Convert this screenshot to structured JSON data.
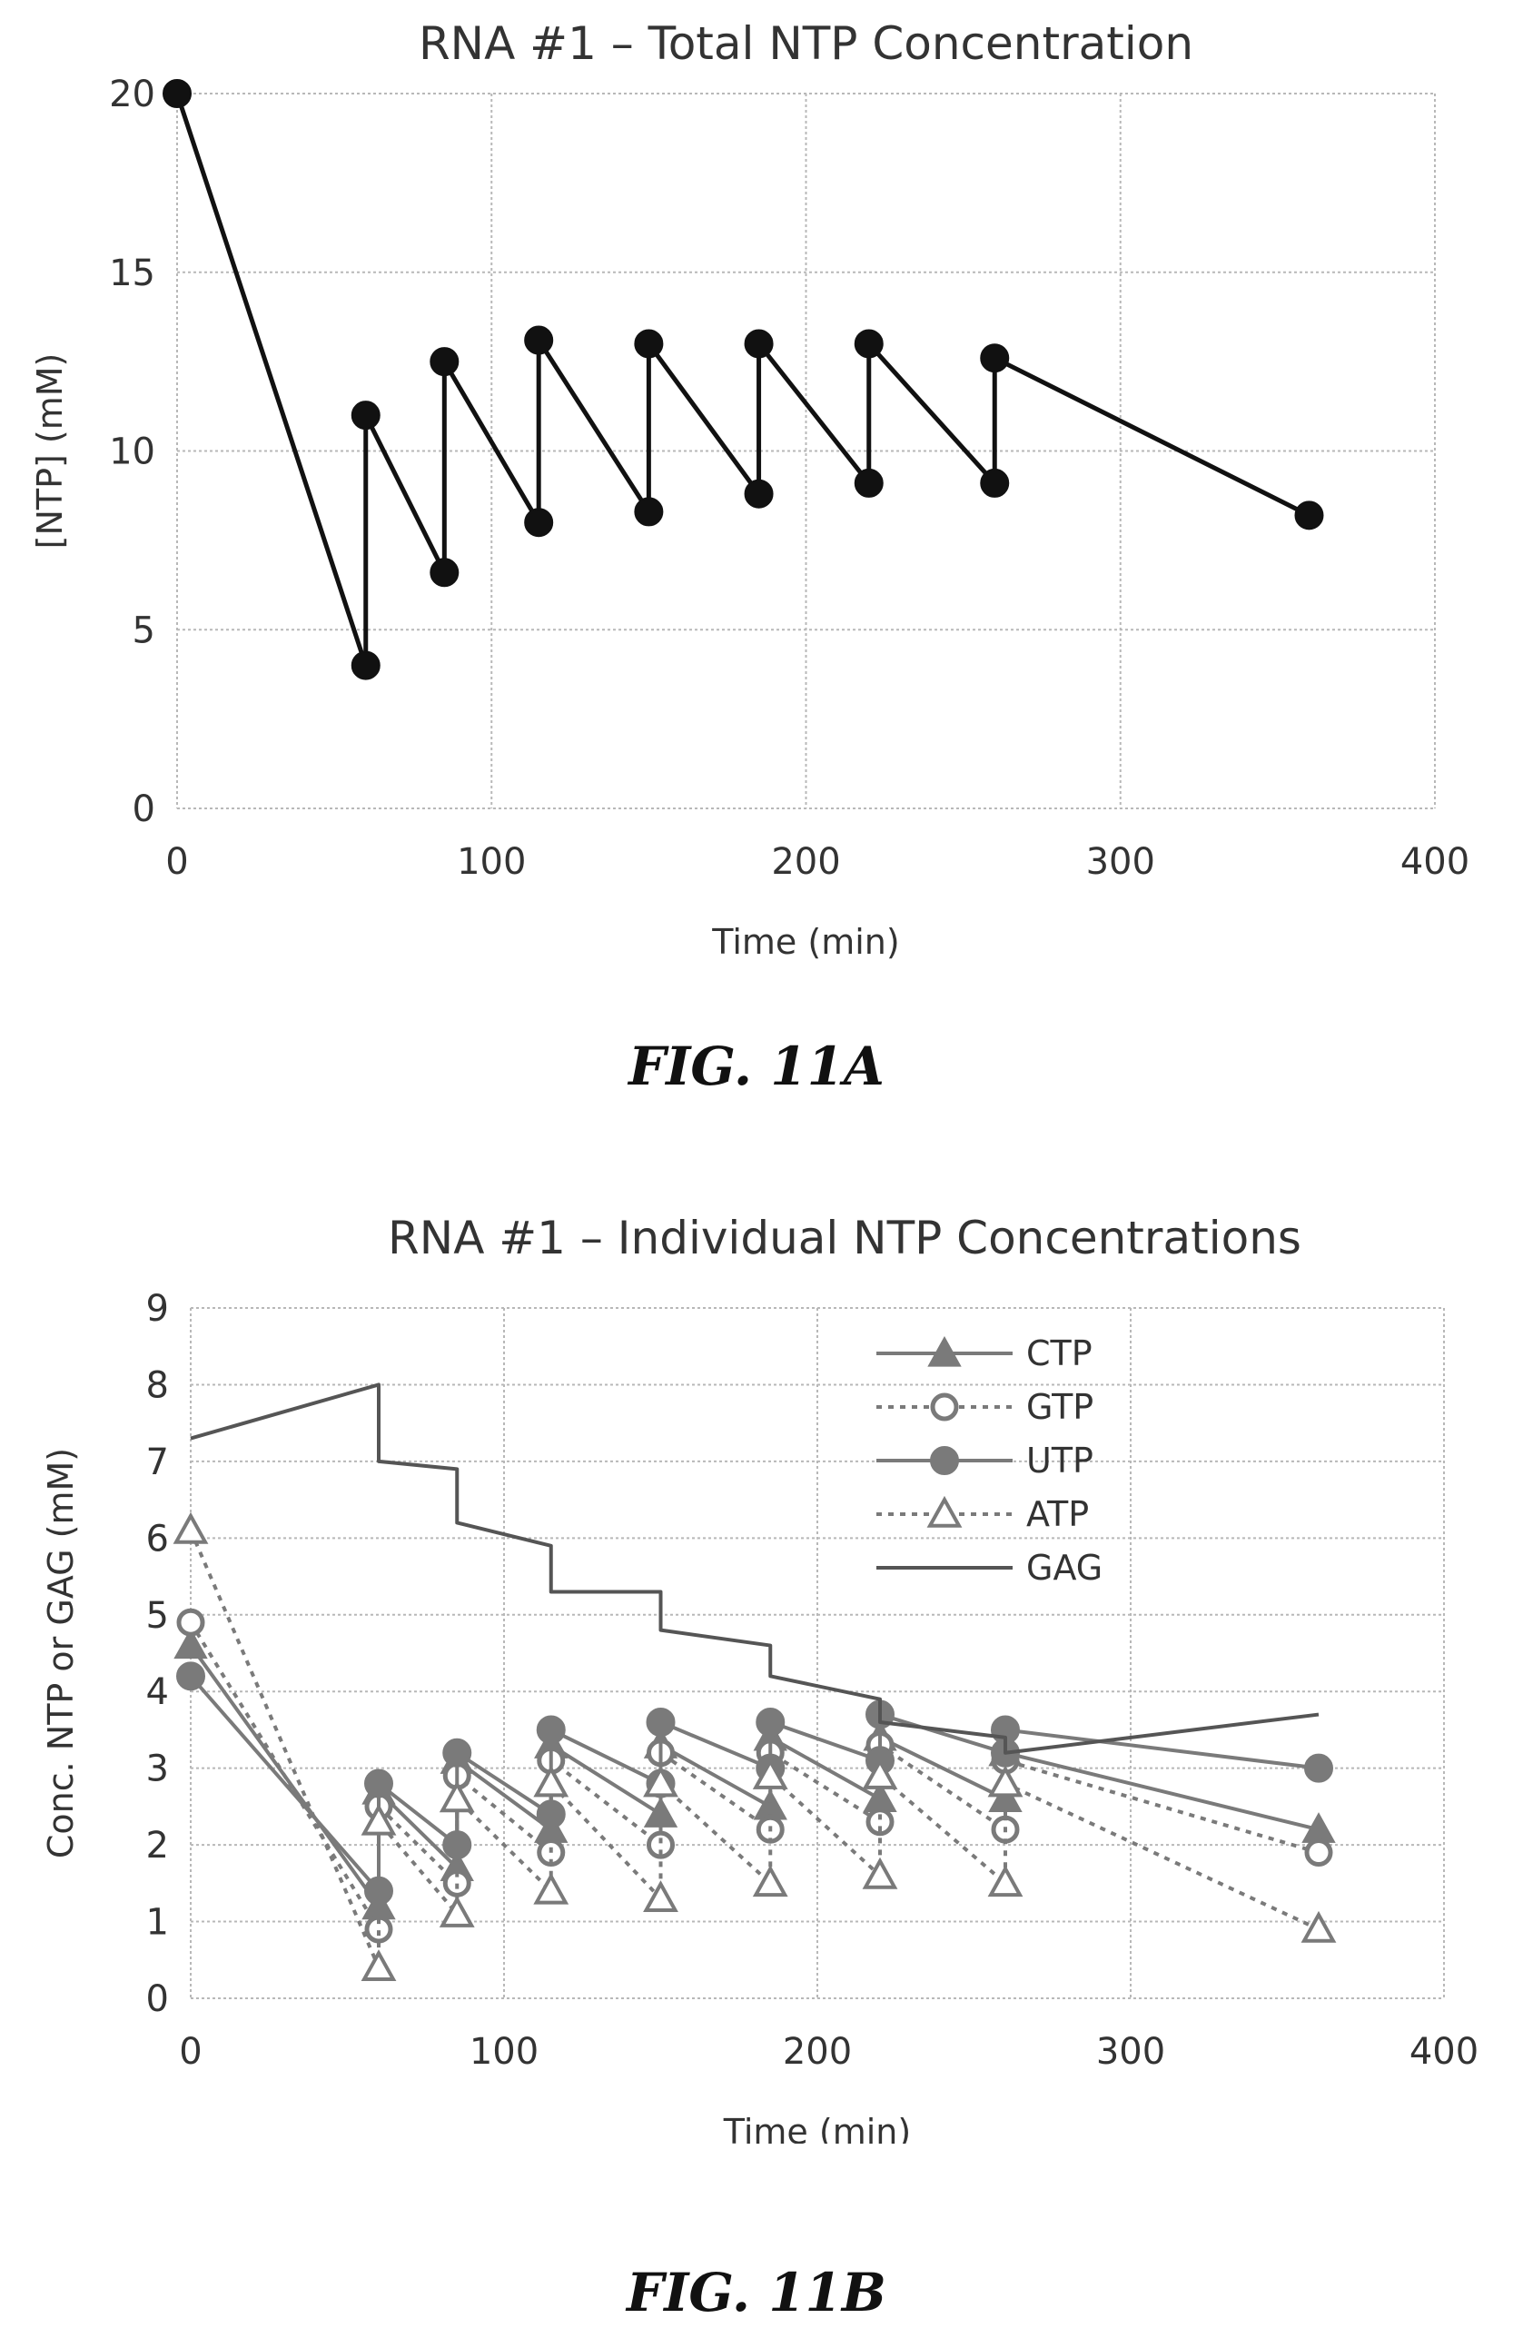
{
  "figures": {
    "a_label": "FIG. 11A",
    "b_label": "FIG. 11B"
  },
  "chart_data": [
    {
      "type": "line",
      "title": "RNA #1 – Total NTP Concentration",
      "xlabel": "Time (min)",
      "ylabel": "[NTP] (mM)",
      "xlim": [
        0,
        400
      ],
      "ylim": [
        0,
        20
      ],
      "xticks": [
        0,
        100,
        200,
        300,
        400
      ],
      "yticks": [
        0,
        5,
        10,
        15,
        20
      ],
      "grid": true,
      "legend": "none",
      "series": [
        {
          "color": "#111111",
          "marker": "circle-filled",
          "x": [
            0,
            60,
            60,
            85,
            85,
            115,
            115,
            150,
            150,
            185,
            185,
            220,
            220,
            260,
            260,
            360
          ],
          "y": [
            20,
            4,
            11,
            6.6,
            12.5,
            8,
            13.1,
            8.3,
            13,
            8.8,
            13,
            9.1,
            13,
            9.1,
            12.6,
            8.2
          ]
        }
      ]
    },
    {
      "type": "line",
      "title": "RNA #1 – Individual NTP Concentrations",
      "xlabel": "Time (min)",
      "ylabel": "Conc. NTP or GAG (mM)",
      "xlim": [
        0,
        400
      ],
      "ylim": [
        0,
        9
      ],
      "xticks": [
        0,
        100,
        200,
        300,
        400
      ],
      "yticks": [
        0,
        1,
        2,
        3,
        4,
        5,
        6,
        7,
        8,
        9
      ],
      "grid": true,
      "legend": "top-right",
      "series": [
        {
          "name": "CTP",
          "marker": "triangle-filled",
          "line": "solid",
          "color": "#7a7a7a",
          "x": [
            0,
            60,
            60,
            85,
            85,
            115,
            115,
            150,
            150,
            185,
            185,
            220,
            220,
            260,
            260,
            360
          ],
          "y": [
            4.6,
            1.2,
            2.7,
            1.7,
            3.1,
            2.2,
            3.3,
            2.4,
            3.3,
            2.5,
            3.4,
            2.6,
            3.4,
            2.6,
            3.2,
            2.2
          ]
        },
        {
          "name": "GTP",
          "marker": "circle-open",
          "line": "dotted",
          "color": "#7a7a7a",
          "x": [
            0,
            60,
            60,
            85,
            85,
            115,
            115,
            150,
            150,
            185,
            185,
            220,
            220,
            260,
            260,
            360
          ],
          "y": [
            4.9,
            0.9,
            2.5,
            1.5,
            2.9,
            1.9,
            3.1,
            2.0,
            3.2,
            2.2,
            3.2,
            2.3,
            3.3,
            2.2,
            3.1,
            1.9
          ]
        },
        {
          "name": "UTP",
          "marker": "circle-filled",
          "line": "solid",
          "color": "#7a7a7a",
          "x": [
            0,
            60,
            60,
            85,
            85,
            115,
            115,
            150,
            150,
            185,
            185,
            220,
            220,
            260,
            260,
            360
          ],
          "y": [
            4.2,
            1.4,
            2.8,
            2.0,
            3.2,
            2.4,
            3.5,
            2.8,
            3.6,
            3.0,
            3.6,
            3.1,
            3.7,
            3.2,
            3.5,
            3.0
          ]
        },
        {
          "name": "ATP",
          "marker": "triangle-open",
          "line": "dotted",
          "color": "#7a7a7a",
          "x": [
            0,
            60,
            60,
            85,
            85,
            115,
            115,
            150,
            150,
            185,
            185,
            220,
            220,
            260,
            260,
            360
          ],
          "y": [
            6.1,
            0.4,
            2.3,
            1.1,
            2.6,
            1.4,
            2.8,
            1.3,
            2.8,
            1.5,
            2.9,
            1.6,
            2.9,
            1.5,
            2.8,
            0.9
          ]
        },
        {
          "name": "GAG",
          "marker": "none",
          "line": "solid",
          "color": "#555555",
          "x": [
            0,
            60,
            60,
            85,
            85,
            115,
            115,
            150,
            150,
            185,
            185,
            220,
            220,
            260,
            260,
            360
          ],
          "y": [
            7.3,
            8.0,
            7.0,
            6.9,
            6.2,
            5.9,
            5.3,
            5.3,
            4.8,
            4.6,
            4.2,
            3.9,
            3.6,
            3.4,
            3.2,
            3.7
          ]
        }
      ]
    }
  ]
}
